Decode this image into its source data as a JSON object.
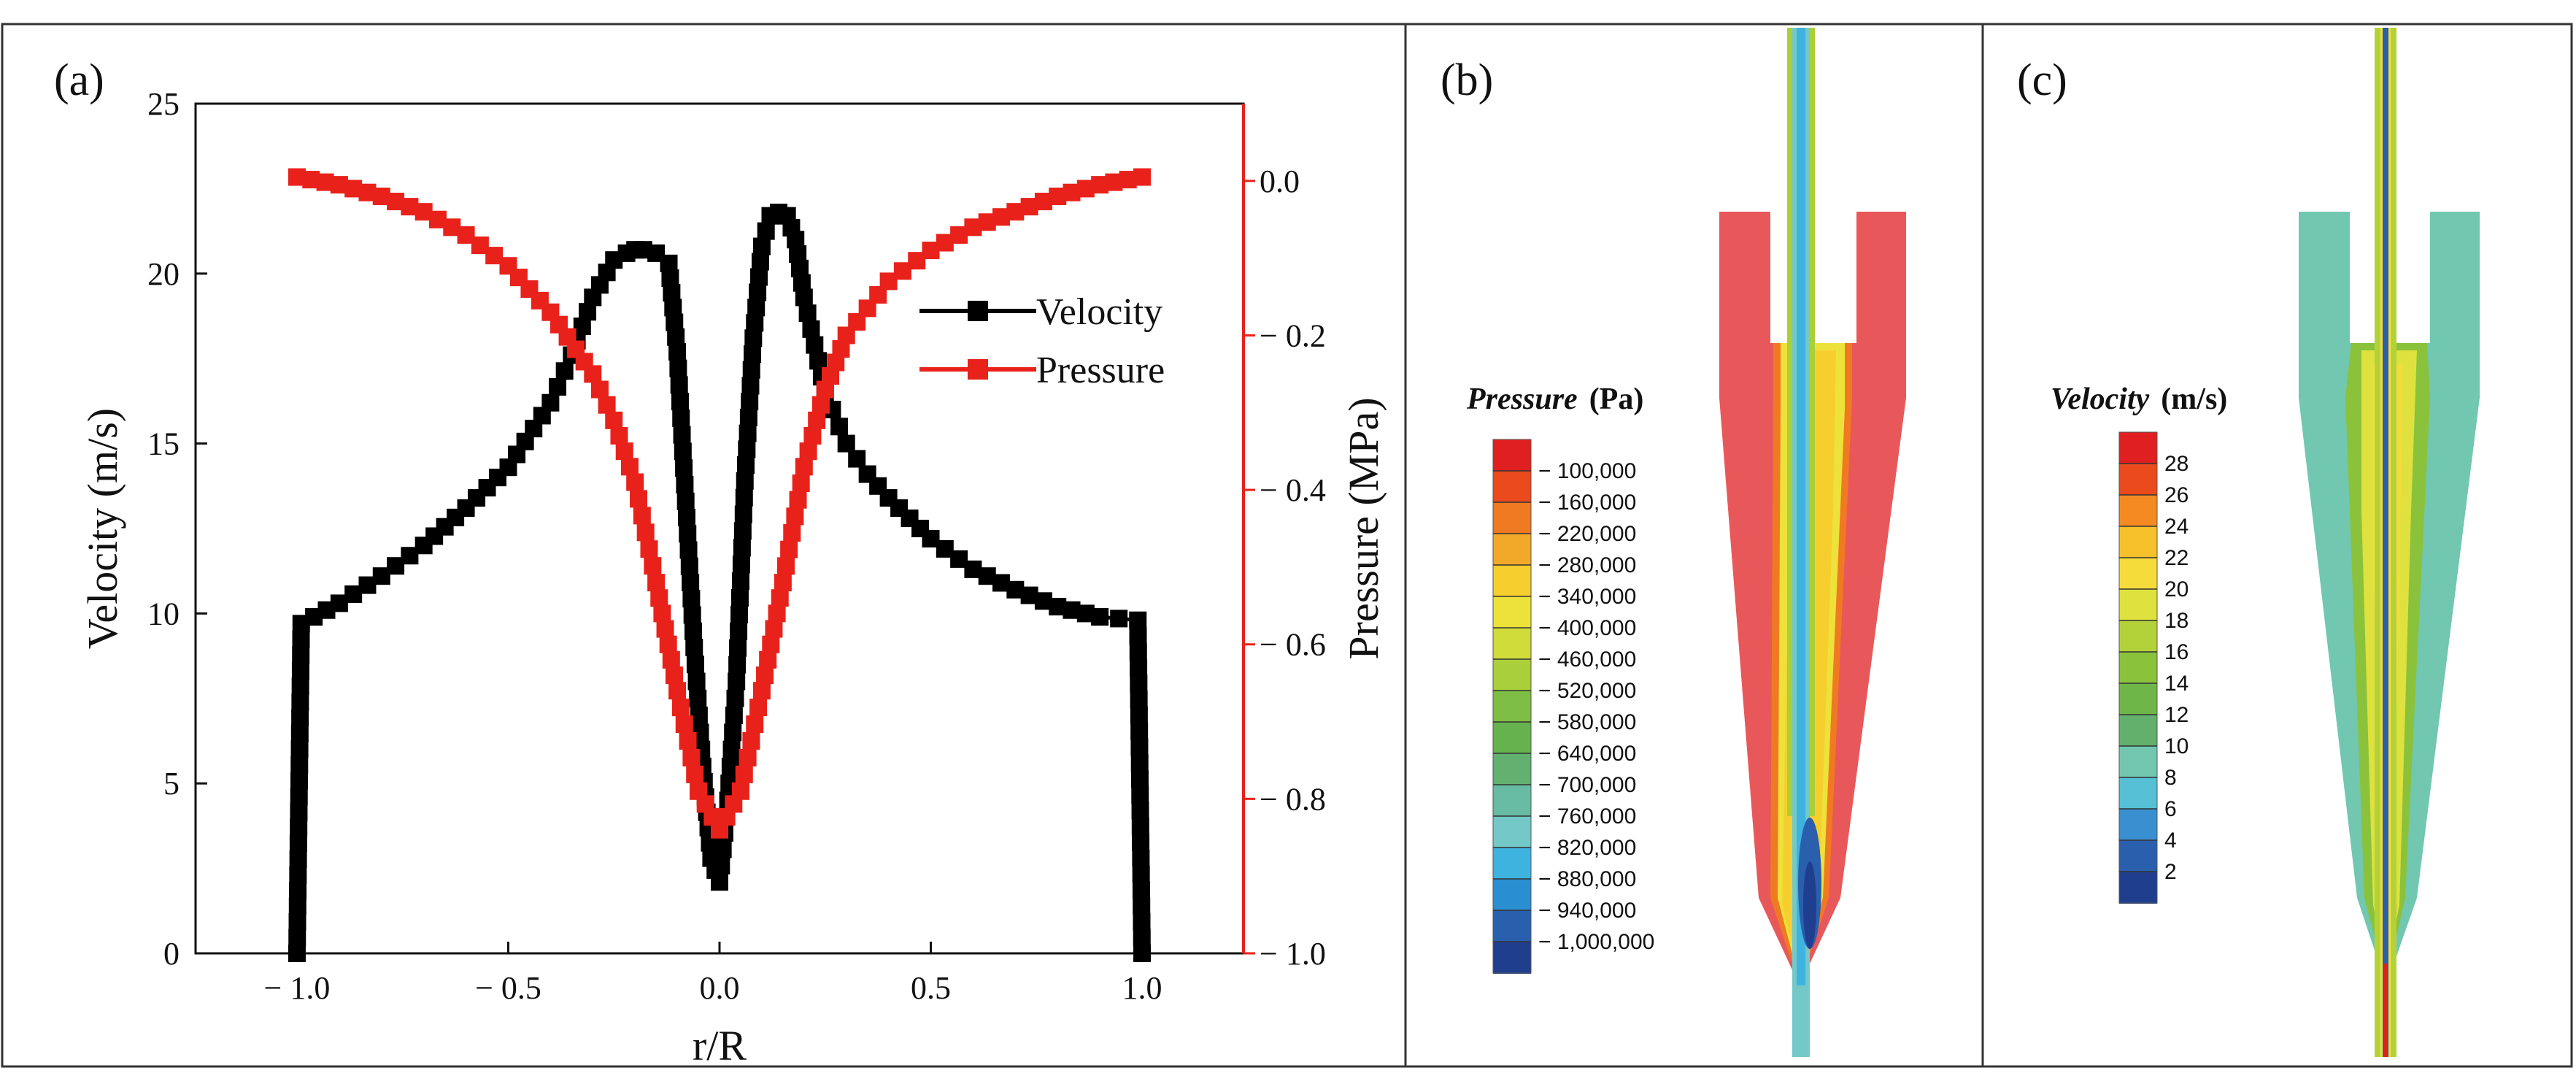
{
  "panels": {
    "a": "(a)",
    "b": "(b)",
    "c": "(c)"
  },
  "chart_data": {
    "type": "line",
    "xlabel": "r/R",
    "ylabel": "Velocity (m/s)",
    "y2label": "Pressure (MPa)",
    "xlim": [
      -1.24,
      1.24
    ],
    "ylim": [
      0,
      25
    ],
    "y2lim": [
      -1.0,
      0.1
    ],
    "xticks": [
      "-1.0",
      "-0.5",
      "0.0",
      "0.5",
      "1.0"
    ],
    "yticks": [
      "0",
      "5",
      "10",
      "15",
      "20",
      "25"
    ],
    "y2ticks": [
      "0.0",
      "-0.2",
      "-0.4",
      "-0.6",
      "-0.8",
      "-1.0"
    ],
    "legend": {
      "position": "upper-right",
      "entries": [
        "Velocity",
        "Pressure"
      ]
    },
    "series": [
      {
        "name": "Velocity",
        "color": "#000000",
        "marker": "square",
        "x": [
          -1.0,
          -0.99,
          -0.9,
          -0.8,
          -0.7,
          -0.6,
          -0.5,
          -0.4,
          -0.35,
          -0.3,
          -0.25,
          -0.22,
          -0.2,
          -0.18,
          -0.15,
          -0.12,
          -0.1,
          -0.08,
          -0.06,
          -0.04,
          -0.02,
          0.0,
          0.02,
          0.04,
          0.06,
          0.08,
          0.1,
          0.12,
          0.14,
          0.16,
          0.18,
          0.2,
          0.25,
          0.3,
          0.35,
          0.4,
          0.5,
          0.6,
          0.7,
          0.8,
          0.9,
          0.99,
          1.0
        ],
        "y": [
          0.0,
          9.7,
          10.3,
          11.1,
          12.0,
          13.1,
          14.3,
          16.2,
          17.6,
          19.3,
          20.4,
          20.6,
          20.7,
          20.7,
          20.6,
          20.3,
          17.7,
          13.3,
          9.0,
          5.5,
          2.8,
          2.1,
          4.5,
          8.0,
          13.9,
          18.1,
          20.8,
          21.7,
          21.8,
          21.7,
          21.0,
          19.3,
          16.5,
          15.0,
          14.1,
          13.4,
          12.2,
          11.3,
          10.7,
          10.2,
          9.9,
          9.8,
          0.0
        ]
      },
      {
        "name": "Pressure",
        "color": "#e8221b",
        "marker": "square",
        "x": [
          -1.0,
          -0.9,
          -0.8,
          -0.7,
          -0.6,
          -0.5,
          -0.4,
          -0.3,
          -0.25,
          -0.2,
          -0.15,
          -0.1,
          -0.05,
          0.0,
          0.05,
          0.1,
          0.15,
          0.2,
          0.25,
          0.3,
          0.4,
          0.5,
          0.6,
          0.7,
          0.8,
          0.9,
          1.0
        ],
        "y": [
          0.005,
          -0.005,
          -0.02,
          -0.04,
          -0.07,
          -0.11,
          -0.17,
          -0.25,
          -0.31,
          -0.39,
          -0.52,
          -0.66,
          -0.79,
          -0.84,
          -0.79,
          -0.66,
          -0.52,
          -0.37,
          -0.27,
          -0.2,
          -0.13,
          -0.09,
          -0.06,
          -0.04,
          -0.02,
          -0.005,
          0.005
        ]
      }
    ]
  },
  "contours": {
    "pressure": {
      "title": "Pressure",
      "unit": "(Pa)",
      "labels": [
        "− 100,000",
        "− 160,000",
        "− 220,000",
        "− 280,000",
        "− 340,000",
        "− 400,000",
        "− 460,000",
        "− 520,000",
        "− 580,000",
        "− 640,000",
        "− 700,000",
        "− 760,000",
        "− 820,000",
        "− 880,000",
        "− 940,000",
        "− 1,000,000"
      ],
      "colors": [
        "#e02020",
        "#ea4a1c",
        "#f07a22",
        "#f2a92a",
        "#f6cf2e",
        "#ede23a",
        "#cfdc3a",
        "#a9cf3a",
        "#7ebe44",
        "#66b24f",
        "#63b070",
        "#67bca3",
        "#74c9c8",
        "#3fb3df",
        "#2a8fd0",
        "#2a5fae",
        "#1f3f8e"
      ]
    },
    "velocity": {
      "title": "Velocity",
      "unit": "(m/s)",
      "labels": [
        "28",
        "26",
        "24",
        "22",
        "20",
        "18",
        "16",
        "14",
        "12",
        "10",
        "8",
        "6",
        "4",
        "2"
      ],
      "colors": [
        "#e02020",
        "#ea4a1c",
        "#f58a22",
        "#f6c12a",
        "#f6dc3a",
        "#dfe23e",
        "#b3d23a",
        "#8ac23c",
        "#6fb648",
        "#62b06b",
        "#72c7b0",
        "#55c0d6",
        "#3a8fd0",
        "#2a5fae",
        "#1f3f8e"
      ]
    }
  }
}
